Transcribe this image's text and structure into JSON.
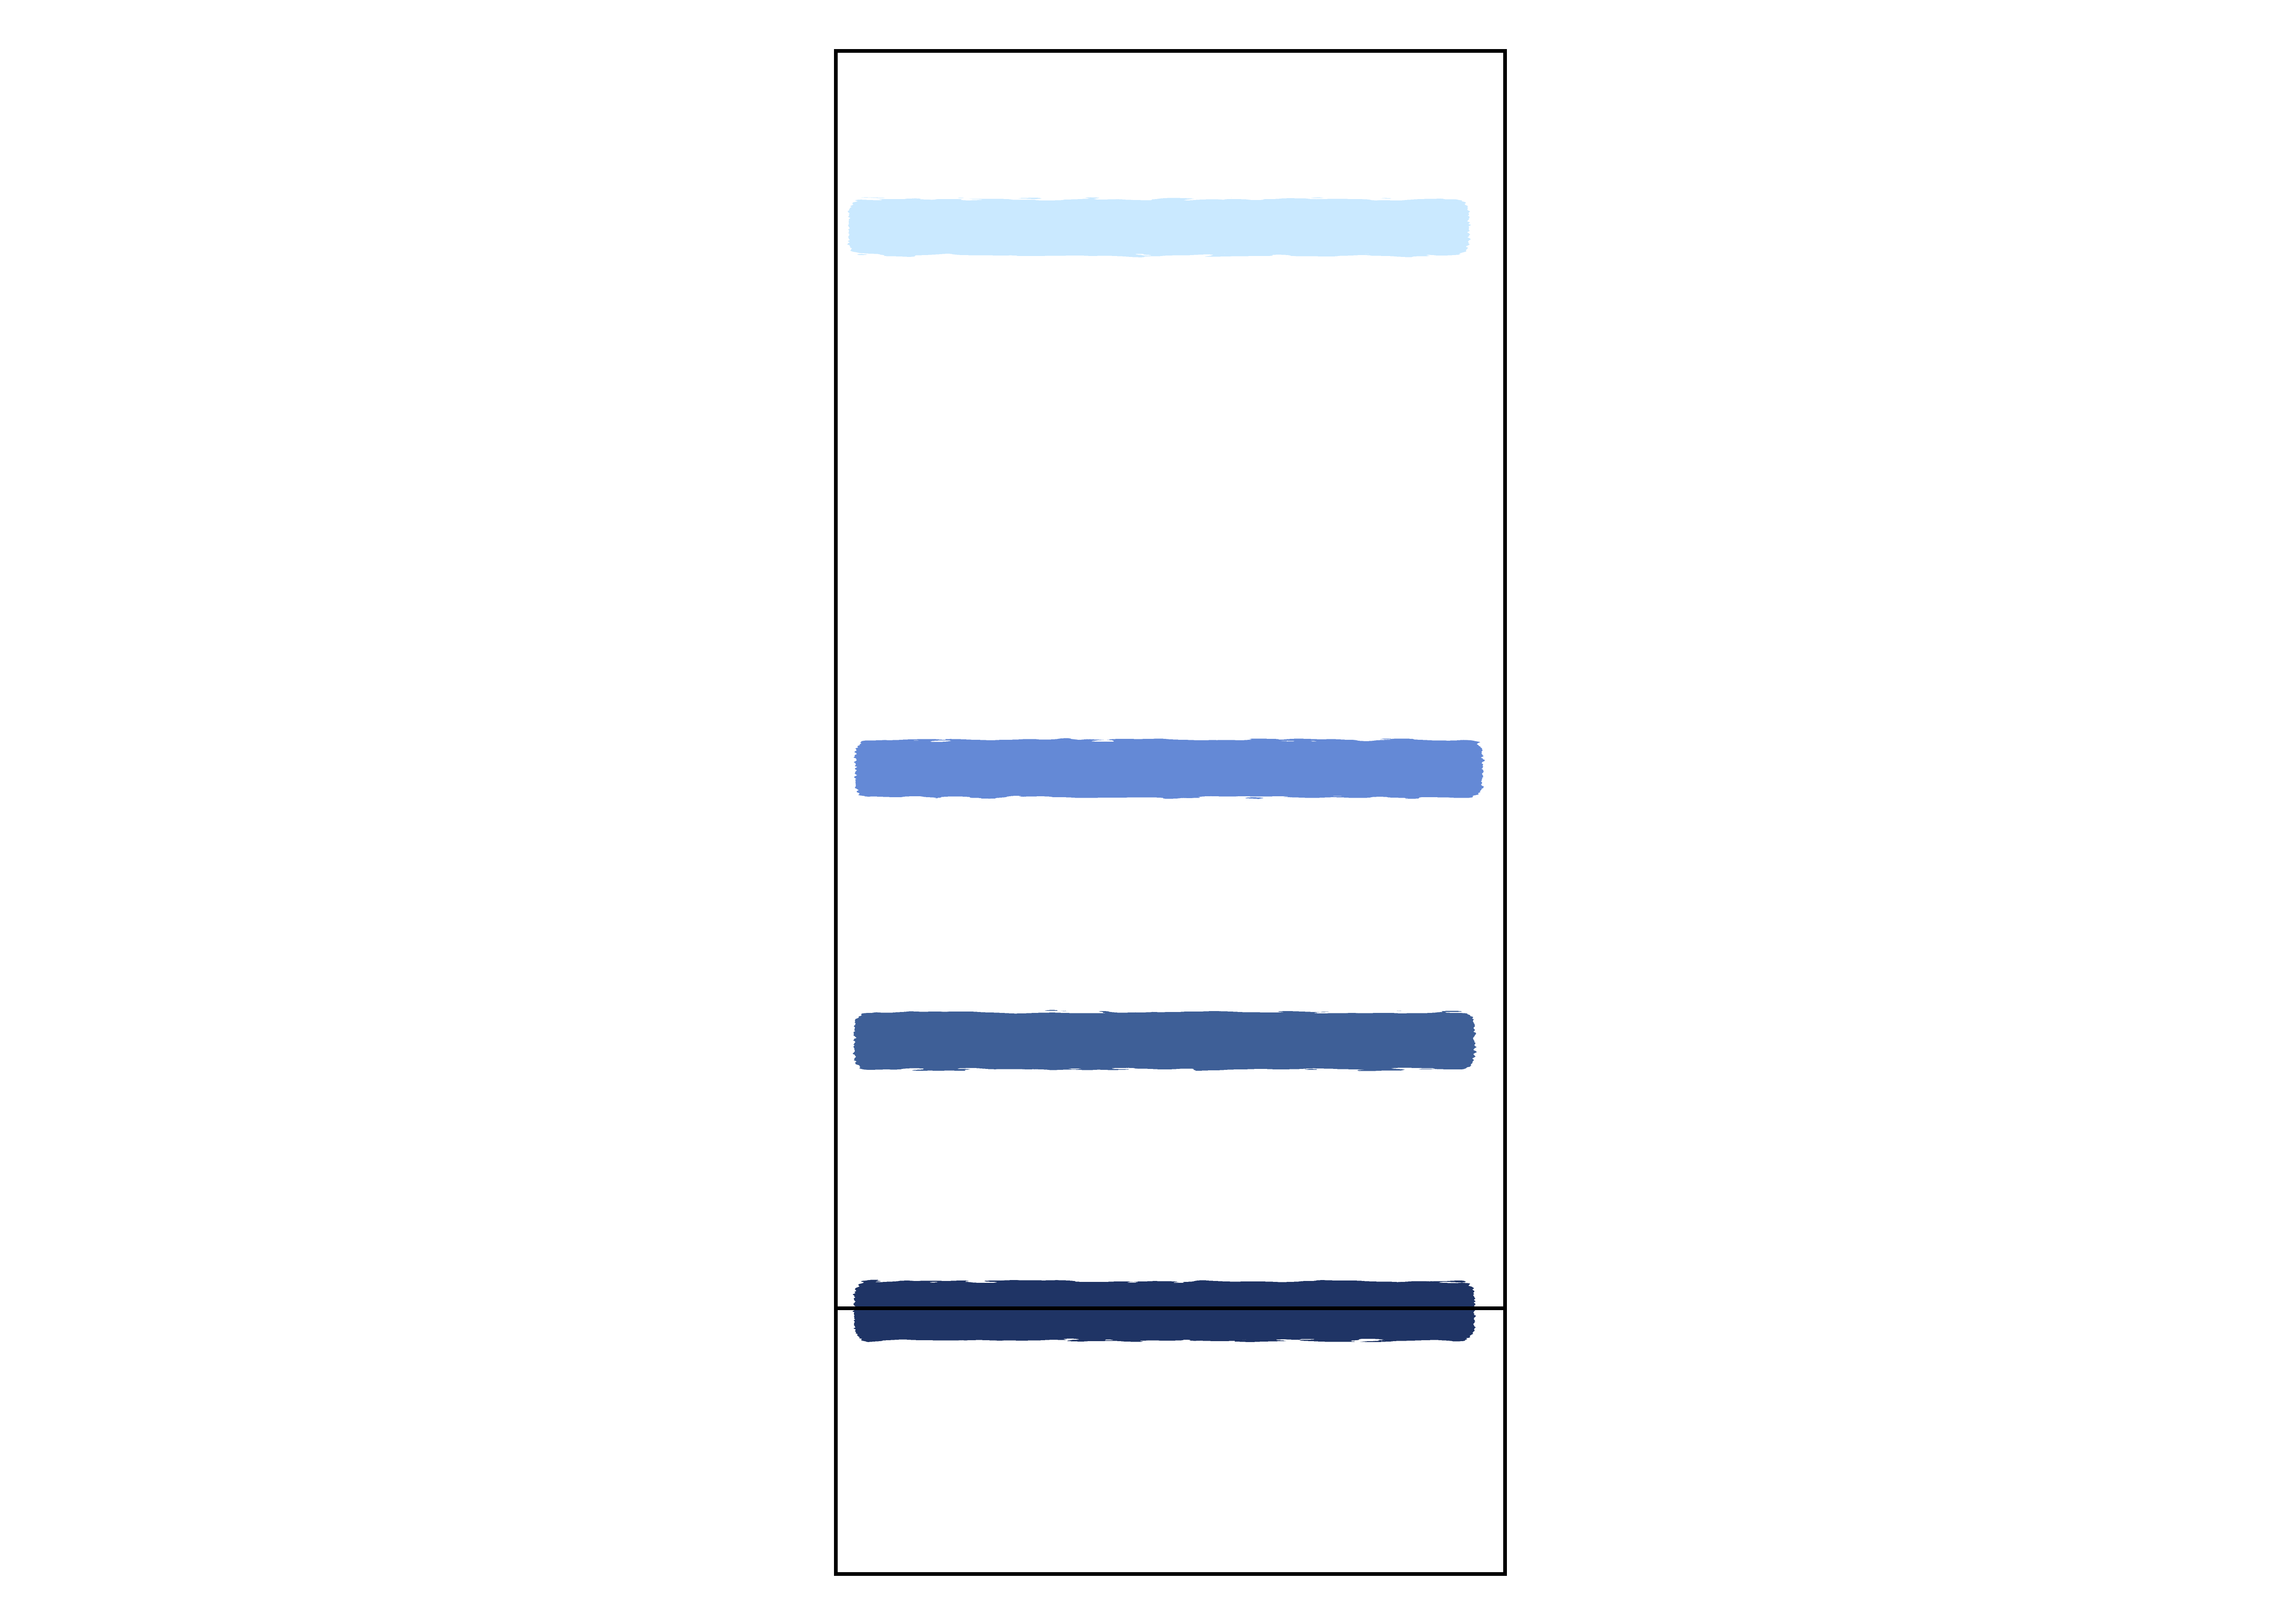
{
  "diagram": {
    "colors": {
      "frame": "#000000",
      "background": "#ffffff"
    },
    "bands": [
      {
        "id": "band-1",
        "color": "#c8e8ff"
      },
      {
        "id": "band-2",
        "color": "#5e84d4"
      },
      {
        "id": "band-3",
        "color": "#355793"
      },
      {
        "id": "band-4",
        "color": "#142d5f"
      }
    ]
  }
}
